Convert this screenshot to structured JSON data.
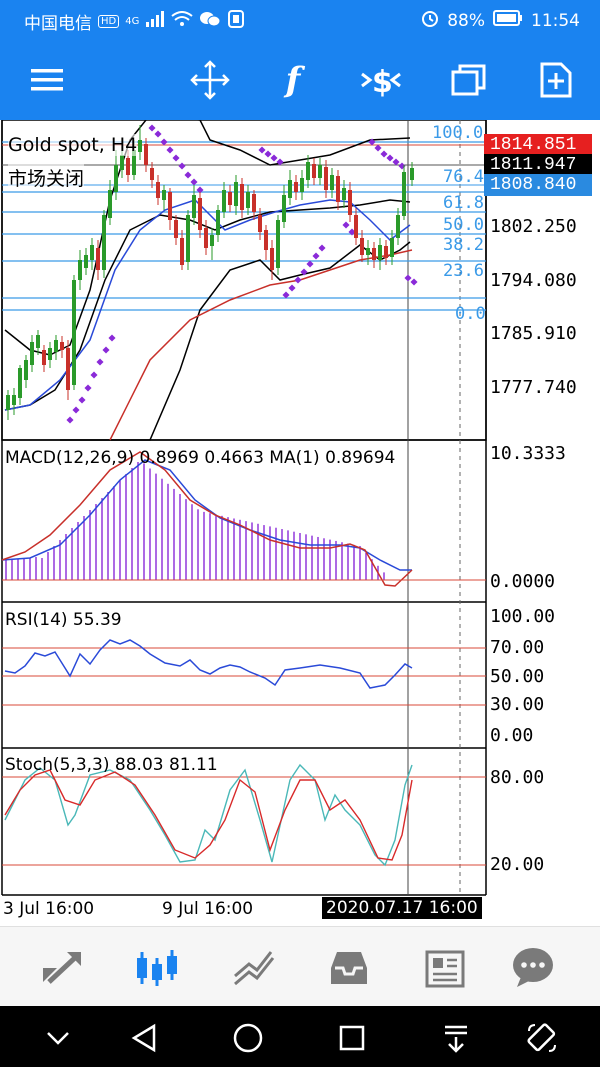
{
  "status_bar": {
    "carrier": "中国电信",
    "network": "4G",
    "battery": "88%",
    "time": "11:54"
  },
  "toolbar": {
    "icons": [
      "menu-icon",
      "crosshair-icon",
      "indicator-f-icon",
      "symbol-dollar-icon",
      "windows-icon",
      "add-chart-icon"
    ],
    "f_glyph": "f"
  },
  "chart": {
    "symbol_label": "Gold spot, H4",
    "market_status": "市场关闭",
    "price_axis": [
      "1802.250",
      "1794.080",
      "1785.910",
      "1777.740"
    ],
    "price_tags": {
      "ask": "1814.851",
      "current": "1811.947",
      "bid": "1808.840"
    },
    "fibonacci_levels": [
      "100.0",
      "76.4",
      "61.8",
      "50.0",
      "38.2",
      "23.6",
      "0.0"
    ],
    "macd": {
      "label": "MACD(12,26,9) 0.8969 0.4663 MA(1) 0.89694",
      "axis_top": "10.3333",
      "axis_zero": "0.0000"
    },
    "rsi": {
      "label": "RSI(14) 55.39",
      "levels": [
        "100.00",
        "70.00",
        "50.00",
        "30.00",
        "0.00"
      ]
    },
    "stoch": {
      "label": "Stoch(5,3,3) 88.03 81.11",
      "levels": [
        "80.00",
        "20.00"
      ]
    },
    "time_axis": [
      "3 Jul 16:00",
      "9 Jul 16:00"
    ],
    "time_cursor": "2020.07.17 16:00"
  },
  "bottom_nav": {
    "items": [
      "trade-icon",
      "chart-candles-icon",
      "history-icon",
      "inbox-icon",
      "news-icon",
      "chat-icon"
    ],
    "active": "chart-candles-icon",
    "active_color": "#1a83f0",
    "inactive_color": "#7a7a7a"
  },
  "colors": {
    "brand": "#1a83f0",
    "ask_bg": "#e62020",
    "current_bg": "#000000",
    "bid_bg": "#2a8ae0",
    "fib_text": "#3a9ae8",
    "red_line": "#d84a3a"
  }
}
